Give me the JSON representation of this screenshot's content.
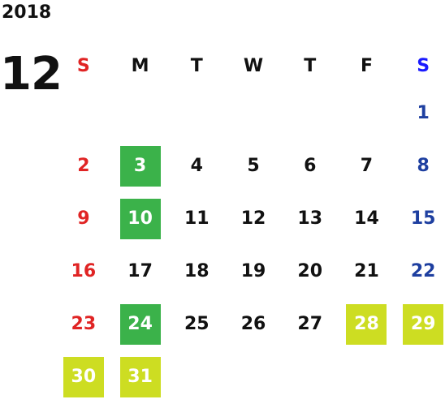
{
  "calendar": {
    "year": "2018",
    "month": "12",
    "weekday_headers": [
      "S",
      "M",
      "T",
      "W",
      "T",
      "F",
      "S"
    ],
    "weeks": [
      [
        "",
        "",
        "",
        "",
        "",
        "",
        "1"
      ],
      [
        "2",
        "3",
        "4",
        "5",
        "6",
        "7",
        "8"
      ],
      [
        "9",
        "10",
        "11",
        "12",
        "13",
        "14",
        "15"
      ],
      [
        "16",
        "17",
        "18",
        "19",
        "20",
        "21",
        "22"
      ],
      [
        "23",
        "24",
        "25",
        "26",
        "27",
        "28",
        "29"
      ],
      [
        "30",
        "31",
        "",
        "",
        "",
        "",
        ""
      ]
    ],
    "highlights": {
      "green": [
        "3",
        "10",
        "24"
      ],
      "yellow": [
        "28",
        "29",
        "30",
        "31"
      ]
    },
    "colors": {
      "sunday": "#e02424",
      "saturday": "#1e3fa0",
      "saturday_header": "#1a1aff",
      "highlight_green": "#3bb24a",
      "highlight_yellow": "#cddd22"
    }
  }
}
